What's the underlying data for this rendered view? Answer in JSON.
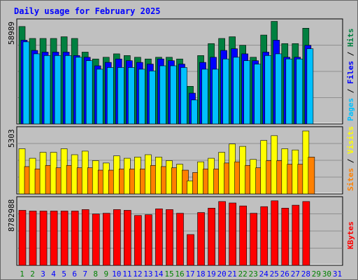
{
  "chart_data": {
    "type": "bar",
    "title": "Daily usage for February 2025",
    "categories": [
      "1",
      "2",
      "3",
      "4",
      "5",
      "6",
      "7",
      "8",
      "9",
      "10",
      "11",
      "12",
      "13",
      "14",
      "15",
      "16",
      "17",
      "18",
      "19",
      "20",
      "21",
      "22",
      "23",
      "24",
      "25",
      "26",
      "27",
      "28",
      "29",
      "30",
      "31"
    ],
    "weekend_days": [
      "1",
      "2",
      "8",
      "9",
      "15",
      "16",
      "22",
      "23",
      "29",
      "30"
    ],
    "panels": [
      {
        "name": "hits-files-pages",
        "max_label": "58989",
        "ymax": 58989,
        "series": [
          {
            "name": "Hits",
            "color": "#008040",
            "values": [
              57000,
              50000,
              50000,
              50000,
              51000,
              50000,
              42000,
              38000,
              39000,
              41000,
              40000,
              39000,
              38000,
              39000,
              39000,
              38000,
              22000,
              40000,
              47000,
              50000,
              51000,
              46000,
              39000,
              52000,
              60000,
              47000,
              47000,
              56000,
              null,
              null,
              null
            ]
          },
          {
            "name": "Files",
            "color": "#0000ff",
            "values": [
              49000,
              43000,
              42000,
              42000,
              42000,
              40000,
              39000,
              34000,
              36000,
              38000,
              37000,
              36000,
              35000,
              38000,
              37000,
              35000,
              18000,
              36000,
              39000,
              43000,
              44000,
              41000,
              37000,
              42000,
              49000,
              39000,
              39000,
              46000,
              null,
              null,
              null
            ]
          },
          {
            "name": "Pages",
            "color": "#00c0ff",
            "values": [
              48000,
              41000,
              40000,
              40000,
              40000,
              39000,
              37000,
              32000,
              33000,
              33000,
              33000,
              32000,
              31000,
              34000,
              34000,
              33000,
              14000,
              32000,
              32000,
              38000,
              39000,
              37000,
              35000,
              40000,
              41000,
              38000,
              38000,
              44000,
              null,
              null,
              null
            ]
          }
        ],
        "right_label_parts": [
          {
            "text": "Pages",
            "color": "#00c0ff"
          },
          {
            "text": " / ",
            "color": "#000000"
          },
          {
            "text": "Files",
            "color": "#0000ff"
          },
          {
            "text": " / ",
            "color": "#000000"
          },
          {
            "text": "Hits",
            "color": "#008040"
          }
        ]
      },
      {
        "name": "visits-sites",
        "max_label": "5303",
        "ymax": 5303,
        "series": [
          {
            "name": "Visits",
            "color": "#ffff00",
            "values": [
              3800,
              3000,
              3500,
              3500,
              3800,
              3300,
              3600,
              2800,
              2600,
              3200,
              3000,
              3100,
              3300,
              3100,
              2800,
              2500,
              1100,
              2700,
              3000,
              3500,
              4200,
              4000,
              2900,
              4500,
              4900,
              3800,
              3700,
              5300,
              null,
              null,
              null
            ]
          },
          {
            "name": "Sites",
            "color": "#ff8000",
            "values": [
              2300,
              2100,
              2400,
              2200,
              2400,
              2200,
              2200,
              2000,
              2000,
              2100,
              2100,
              2100,
              2400,
              2300,
              2200,
              2000,
              1800,
              2100,
              2100,
              2600,
              2700,
              2400,
              2200,
              2800,
              2800,
              2500,
              2500,
              3100,
              null,
              null,
              null
            ]
          }
        ],
        "right_label_parts": [
          {
            "text": "Sites",
            "color": "#ff8000"
          },
          {
            "text": " / ",
            "color": "#000000"
          },
          {
            "text": "Visits",
            "color": "#ffff00"
          }
        ]
      },
      {
        "name": "kbytes",
        "max_label": "8782988",
        "ymax": 8782988,
        "series": [
          {
            "name": "KBytes",
            "color": "#ff0000",
            "values": [
              7500000,
              7400000,
              7400000,
              7400000,
              7400000,
              7400000,
              7600000,
              7000000,
              7100000,
              7600000,
              7500000,
              6800000,
              6900000,
              7700000,
              7600000,
              7100000,
              4200000,
              7200000,
              7800000,
              8700000,
              8500000,
              8100000,
              7100000,
              8000000,
              8800000,
              7800000,
              8200000,
              8700000,
              null,
              null,
              null
            ]
          }
        ],
        "right_label_parts": [
          {
            "text": "KBytes",
            "color": "#ff0000"
          }
        ]
      }
    ],
    "grid": true,
    "colors": {
      "background": "#c0c0c0",
      "plot_background": "#c0c0c0",
      "weekday_label": "#0000ff",
      "weekend_label": "#008000",
      "title": "#0000ff"
    }
  }
}
